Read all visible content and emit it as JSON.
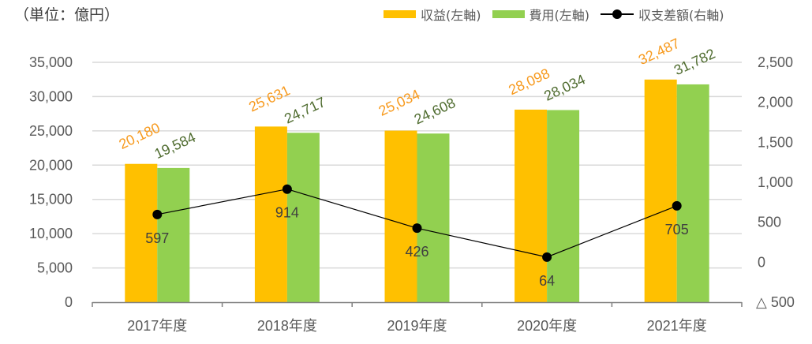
{
  "unit_label": "（単位：億円）",
  "chart_data": {
    "type": "bar",
    "title": "",
    "unit": "（単位：億円）",
    "categories": [
      "2017年度",
      "2018年度",
      "2019年度",
      "2020年度",
      "2021年度"
    ],
    "series": [
      {
        "name": "収益(左軸)",
        "axis": "left",
        "type": "bar",
        "color": "#FFC000",
        "label_color": "#F79A1E",
        "values": [
          20180,
          25631,
          25034,
          28098,
          32487
        ],
        "labels": [
          "20,180",
          "25,631",
          "25,034",
          "28,098",
          "32,487"
        ]
      },
      {
        "name": "費用(左軸)",
        "axis": "left",
        "type": "bar",
        "color": "#92D050",
        "label_color": "#4E6B2E",
        "values": [
          19584,
          24717,
          24608,
          28034,
          31782
        ],
        "labels": [
          "19,584",
          "24,717",
          "24,608",
          "28,034",
          "31,782"
        ]
      },
      {
        "name": "収支差額(右軸)",
        "axis": "right",
        "type": "line",
        "color": "#000000",
        "label_color": "#404040",
        "values": [
          597,
          914,
          426,
          64,
          705
        ],
        "labels": [
          "597",
          "914",
          "426",
          "64",
          "705"
        ]
      }
    ],
    "left_axis": {
      "ylim": [
        0,
        35000
      ],
      "ticks": [
        0,
        5000,
        10000,
        15000,
        20000,
        25000,
        30000,
        35000
      ],
      "tick_labels": [
        "0",
        "5,000",
        "10,000",
        "15,000",
        "20,000",
        "25,000",
        "30,000",
        "35,000"
      ]
    },
    "right_axis": {
      "ylim": [
        -500,
        2500
      ],
      "ticks": [
        -500,
        0,
        500,
        1000,
        1500,
        2000,
        2500
      ],
      "tick_labels": [
        "△ 500",
        "0",
        "500",
        "1,000",
        "1,500",
        "2,000",
        "2,500"
      ]
    },
    "grid": true,
    "legend_position": "top-right",
    "legend": [
      {
        "label": "収益(左軸)",
        "kind": "bar",
        "color": "#FFC000"
      },
      {
        "label": "費用(左軸)",
        "kind": "bar",
        "color": "#92D050"
      },
      {
        "label": "収支差額(右軸)",
        "kind": "line-marker",
        "color": "#000000"
      }
    ]
  }
}
